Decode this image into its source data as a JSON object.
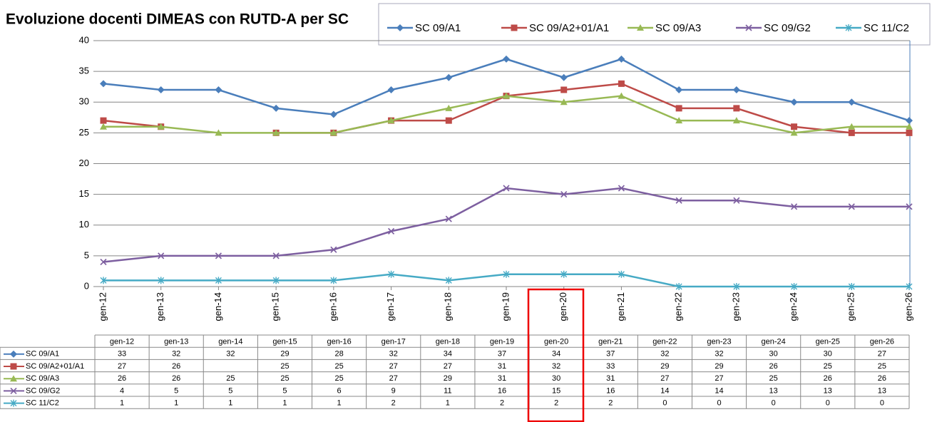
{
  "chart_data": {
    "type": "line",
    "title": "Evoluzione docenti DIMEAS con RUTD-A per SC",
    "categories": [
      "gen-12",
      "gen-13",
      "gen-14",
      "gen-15",
      "gen-16",
      "gen-17",
      "gen-18",
      "gen-19",
      "gen-20",
      "gen-21",
      "gen-22",
      "gen-23",
      "gen-24",
      "gen-25",
      "gen-26"
    ],
    "series": [
      {
        "name": "SC 09/A1",
        "color": "#4a7ebb",
        "marker": "diamond",
        "values": [
          33,
          32,
          32,
          29,
          28,
          32,
          34,
          37,
          34,
          37,
          32,
          32,
          30,
          30,
          27
        ]
      },
      {
        "name": "SC 09/A2+01/A1",
        "color": "#be4b48",
        "marker": "square",
        "values": [
          27,
          26,
          null,
          25,
          25,
          27,
          27,
          31,
          32,
          33,
          29,
          29,
          26,
          25,
          25
        ]
      },
      {
        "name": "SC 09/A3",
        "color": "#98b954",
        "marker": "triangle",
        "values": [
          26,
          26,
          25,
          25,
          25,
          27,
          29,
          31,
          30,
          31,
          27,
          27,
          25,
          26,
          26
        ]
      },
      {
        "name": "SC 09/G2",
        "color": "#7d5fa0",
        "marker": "x",
        "values": [
          4,
          5,
          5,
          5,
          6,
          9,
          11,
          16,
          15,
          16,
          14,
          14,
          13,
          13,
          13
        ]
      },
      {
        "name": "SC 11/C2",
        "color": "#46aac5",
        "marker": "star",
        "values": [
          1,
          1,
          1,
          1,
          1,
          2,
          1,
          2,
          2,
          2,
          0,
          0,
          0,
          0,
          0
        ]
      }
    ],
    "ylim": [
      0,
      40
    ],
    "yticks": [
      0,
      5,
      10,
      15,
      20,
      25,
      30,
      35,
      40
    ],
    "grid": true,
    "legend": "top",
    "data_table": true
  }
}
